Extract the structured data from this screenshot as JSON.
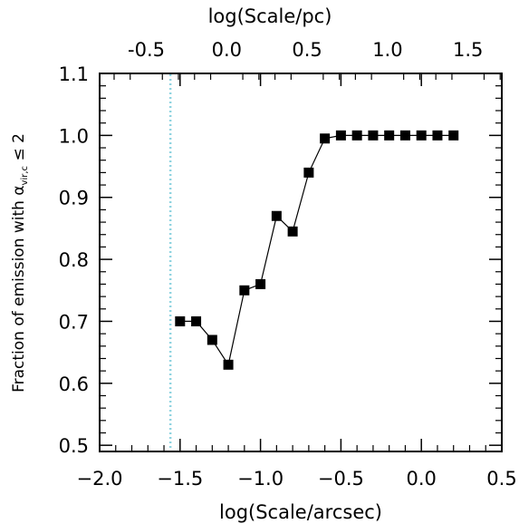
{
  "chart_data": {
    "type": "scatter",
    "xlabel": "log(Scale/arcsec)",
    "x2label": "log(Scale/pc)",
    "ylabel": {
      "prefix": "Fraction of emission with ",
      "symbol": "α",
      "subscript": "vir,c",
      "suffix": " ≤ 2"
    },
    "xlim": [
      -2.0,
      0.5
    ],
    "ylim": [
      0.49,
      1.1
    ],
    "x2lim": [
      -0.79,
      1.71
    ],
    "xticks": [
      {
        "value": -2.0,
        "label": "−2.0"
      },
      {
        "value": -1.5,
        "label": "−1.5"
      },
      {
        "value": -1.0,
        "label": "−1.0"
      },
      {
        "value": -0.5,
        "label": "−0.5"
      },
      {
        "value": 0.0,
        "label": "0.0"
      },
      {
        "value": 0.5,
        "label": "0.5"
      }
    ],
    "x2ticks": [
      {
        "value": -0.5,
        "label": "-0.5"
      },
      {
        "value": 0.0,
        "label": "0.0"
      },
      {
        "value": 0.5,
        "label": "0.5"
      },
      {
        "value": 1.0,
        "label": "1.0"
      },
      {
        "value": 1.5,
        "label": "1.5"
      }
    ],
    "yticks": [
      {
        "value": 0.5,
        "label": "0.5"
      },
      {
        "value": 0.6,
        "label": "0.6"
      },
      {
        "value": 0.7,
        "label": "0.7"
      },
      {
        "value": 0.8,
        "label": "0.8"
      },
      {
        "value": 0.9,
        "label": "0.9"
      },
      {
        "value": 1.0,
        "label": "1.0"
      },
      {
        "value": 1.1,
        "label": "1.1"
      }
    ],
    "vline": {
      "x": -1.56,
      "color": "#8fd3e0",
      "style": "dotted"
    },
    "series": [
      {
        "color": "#000000",
        "marker": "square",
        "line": true,
        "x": [
          -1.5,
          -1.4,
          -1.3,
          -1.2,
          -1.1,
          -1.0,
          -0.9,
          -0.8,
          -0.7,
          -0.6,
          -0.5,
          -0.4,
          -0.3,
          -0.2,
          -0.1,
          0.0,
          0.1,
          0.2
        ],
        "y": [
          0.7,
          0.7,
          0.67,
          0.63,
          0.75,
          0.76,
          0.87,
          0.845,
          0.94,
          0.995,
          1.0,
          1.0,
          1.0,
          1.0,
          1.0,
          1.0,
          1.0,
          1.0
        ]
      }
    ]
  }
}
